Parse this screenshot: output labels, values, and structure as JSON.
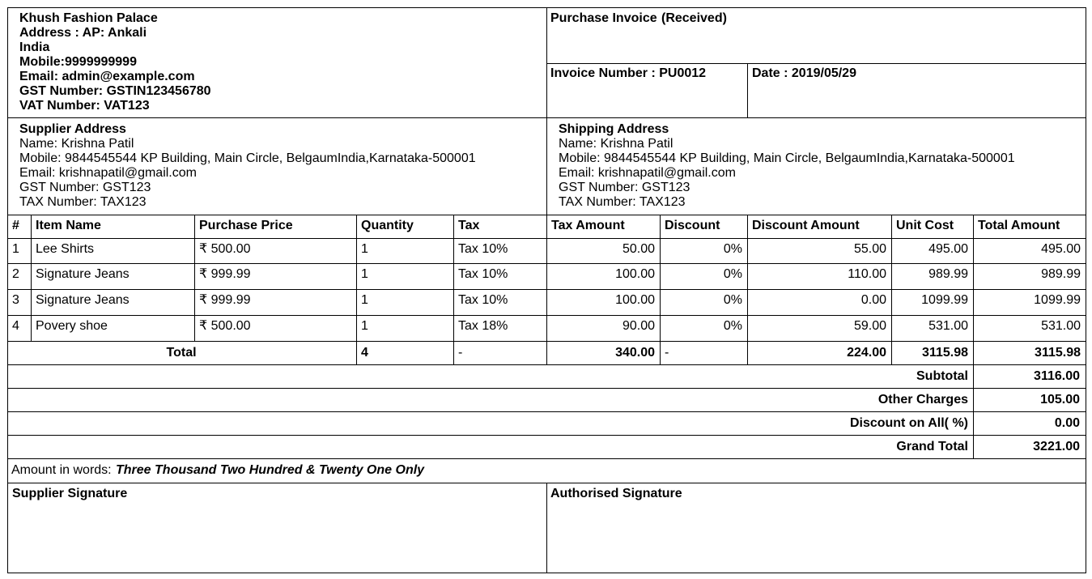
{
  "company": {
    "name": "Khush Fashion Palace",
    "lines": [
      "Address : AP: Ankali",
      "India",
      "Mobile:9999999999",
      "Email: admin@example.com",
      "GST Number: GSTIN123456780",
      "VAT Number: VAT123"
    ]
  },
  "invoice": {
    "title": "Purchase Invoice",
    "status": "(Received)",
    "number": "Invoice Number : PU0012",
    "date": "Date : 2019/05/29"
  },
  "supplier": {
    "heading": "Supplier Address",
    "lines": [
      "Name: Krishna Patil",
      "Mobile: 9844545544 KP Building, Main Circle, BelgaumIndia,Karnataka-500001",
      "Email: krishnapatil@gmail.com",
      "GST Number: GST123",
      "TAX Number: TAX123"
    ]
  },
  "shipping": {
    "heading": "Shipping Address",
    "lines": [
      "Name: Krishna Patil",
      "Mobile: 9844545544 KP Building, Main Circle, BelgaumIndia,Karnataka-500001",
      "Email: krishnapatil@gmail.com",
      "GST Number: GST123",
      "TAX Number: TAX123"
    ]
  },
  "table": {
    "columns": [
      "#",
      "Item Name",
      "Purchase Price",
      "Quantity",
      "Tax",
      "Tax Amount",
      "Discount",
      "Discount Amount",
      "Unit Cost",
      "Total Amount"
    ],
    "rows": [
      [
        "1",
        "Lee Shirts",
        "₹ 500.00",
        "1",
        "Tax 10%",
        "50.00",
        "0%",
        "55.00",
        "495.00",
        "495.00"
      ],
      [
        "2",
        "Signature Jeans",
        "₹ 999.99",
        "1",
        "Tax 10%",
        "100.00",
        "0%",
        "110.00",
        "989.99",
        "989.99"
      ],
      [
        "3",
        "Signature Jeans",
        "₹ 999.99",
        "1",
        "Tax 10%",
        "100.00",
        "0%",
        "0.00",
        "1099.99",
        "1099.99"
      ],
      [
        "4",
        "Povery shoe",
        "₹ 500.00",
        "1",
        "Tax 18%",
        "90.00",
        "0%",
        "59.00",
        "531.00",
        "531.00"
      ]
    ],
    "total": {
      "label": "Total",
      "quantity": "4",
      "tax": "-",
      "tax_amount": "340.00",
      "discount": "-",
      "discount_amount": "224.00",
      "unit_cost": "3115.98",
      "total_amount": "3115.98"
    }
  },
  "summary": [
    {
      "label": "Subtotal",
      "value": "3116.00"
    },
    {
      "label": "Other Charges",
      "value": "105.00"
    },
    {
      "label": "Discount on All( %)",
      "value": "0.00"
    },
    {
      "label": "Grand Total",
      "value": "3221.00"
    }
  ],
  "amount_in_words": {
    "label": "Amount in words:",
    "value": "Three Thousand Two Hundred & Twenty One Only"
  },
  "signatures": [
    "Supplier Signature",
    "Authorised Signature"
  ]
}
